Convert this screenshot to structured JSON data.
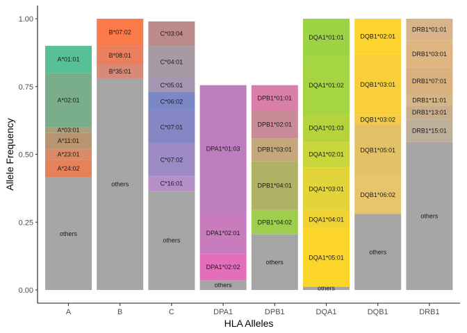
{
  "chart_data": {
    "type": "bar",
    "stacked": true,
    "title": "",
    "xlabel": "HLA Alleles",
    "ylabel": "Allele Frequency",
    "ylim": [
      0,
      1.0
    ],
    "yticks": [
      "0.00",
      "0.25",
      "0.50",
      "0.75",
      "1.00"
    ],
    "categories": [
      "A",
      "B",
      "C",
      "DPA1",
      "DPB1",
      "DQA1",
      "DQB1",
      "DRB1"
    ],
    "grid": false,
    "legend": "none",
    "stacks": [
      {
        "category": "A",
        "segments": [
          {
            "label": "others",
            "value": 0.415,
            "color": "#a6a6a6"
          },
          {
            "label": "A*24:02",
            "value": 0.065,
            "color": "#e5825a"
          },
          {
            "label": "A*23:01",
            "value": 0.04,
            "color": "#db8a66"
          },
          {
            "label": "A*11:01",
            "value": 0.06,
            "color": "#b99470"
          },
          {
            "label": "A*03:01",
            "value": 0.02,
            "color": "#a8a07a"
          },
          {
            "label": "A*02:01",
            "value": 0.2,
            "color": "#7aae8a"
          },
          {
            "label": "A*01:01",
            "value": 0.1,
            "color": "#58c098"
          }
        ]
      },
      {
        "category": "B",
        "segments": [
          {
            "label": "others",
            "value": 0.78,
            "color": "#a6a6a6"
          },
          {
            "label": "B*35:01",
            "value": 0.05,
            "color": "#d88a78"
          },
          {
            "label": "B*08:01",
            "value": 0.07,
            "color": "#ea7f5d"
          },
          {
            "label": "B*07:02",
            "value": 0.1,
            "color": "#fa7a4a"
          }
        ]
      },
      {
        "category": "C",
        "segments": [
          {
            "label": "others",
            "value": 0.365,
            "color": "#a6a6a6"
          },
          {
            "label": "C*16:01",
            "value": 0.055,
            "color": "#b68fc8"
          },
          {
            "label": "C*07:02",
            "value": 0.12,
            "color": "#9b8ac4"
          },
          {
            "label": "C*07:01",
            "value": 0.12,
            "color": "#8786c5"
          },
          {
            "label": "C*06:02",
            "value": 0.07,
            "color": "#7a89c6"
          },
          {
            "label": "C*05:01",
            "value": 0.05,
            "color": "#a596b4"
          },
          {
            "label": "C*04:01",
            "value": 0.12,
            "color": "#a89aa4"
          },
          {
            "label": "C*03:04",
            "value": 0.09,
            "color": "#bc8a88"
          }
        ]
      },
      {
        "category": "DPA1",
        "segments": [
          {
            "label": "others",
            "value": 0.035,
            "color": "#a6a6a6"
          },
          {
            "label": "DPA1*02:02",
            "value": 0.1,
            "color": "#e36fba"
          },
          {
            "label": "DPA1*02:01",
            "value": 0.15,
            "color": "#c97cbd"
          },
          {
            "label": "DPA1*01:03",
            "value": 0.47,
            "color": "#bd7ebf"
          }
        ]
      },
      {
        "category": "DPB1",
        "segments": [
          {
            "label": "others",
            "value": 0.205,
            "color": "#a6a6a6"
          },
          {
            "label": "DPB1*04:02",
            "value": 0.09,
            "color": "#9fce4f"
          },
          {
            "label": "DPB1*04:01",
            "value": 0.18,
            "color": "#afb265"
          },
          {
            "label": "DPB1*03:01",
            "value": 0.085,
            "color": "#c4a87c"
          },
          {
            "label": "DPB1*02:01",
            "value": 0.1,
            "color": "#c98b98"
          },
          {
            "label": "DPB1*01:01",
            "value": 0.095,
            "color": "#d97ea8"
          }
        ]
      },
      {
        "category": "DQA1",
        "segments": [
          {
            "label": "others",
            "value": 0.012,
            "color": "#a6a6a6"
          },
          {
            "label": "DQA1*05:01",
            "value": 0.215,
            "color": "#fbd52a"
          },
          {
            "label": "DQA1*04:01",
            "value": 0.065,
            "color": "#f1d235"
          },
          {
            "label": "DQA1*03:01",
            "value": 0.16,
            "color": "#e3d43a"
          },
          {
            "label": "DQA1*02:01",
            "value": 0.095,
            "color": "#c8d63b"
          },
          {
            "label": "DQA1*01:03",
            "value": 0.1,
            "color": "#b5d33e"
          },
          {
            "label": "DQA1*01:02",
            "value": 0.215,
            "color": "#a6d543"
          },
          {
            "label": "DQA1*01:01",
            "value": 0.138,
            "color": "#9cd445"
          }
        ]
      },
      {
        "category": "DQB1",
        "segments": [
          {
            "label": "others",
            "value": 0.28,
            "color": "#a6a6a6"
          },
          {
            "label": "DQB1*06:02",
            "value": 0.14,
            "color": "#e7c56f"
          },
          {
            "label": "DQB1*05:01",
            "value": 0.19,
            "color": "#e3c267"
          },
          {
            "label": "DQB1*03:02",
            "value": 0.035,
            "color": "#f1cb49"
          },
          {
            "label": "DQB1*03:01",
            "value": 0.225,
            "color": "#f8cf3a"
          },
          {
            "label": "DQB1*02:01",
            "value": 0.13,
            "color": "#fdd330"
          }
        ]
      },
      {
        "category": "DRB1",
        "segments": [
          {
            "label": "others",
            "value": 0.545,
            "color": "#a6a6a6"
          },
          {
            "label": "DRB1*15:01",
            "value": 0.085,
            "color": "#bdb09a"
          },
          {
            "label": "DRB1*13:01",
            "value": 0.05,
            "color": "#c9ae8c"
          },
          {
            "label": "DRB1*11:01",
            "value": 0.04,
            "color": "#d6b588"
          },
          {
            "label": "DRB1*07:01",
            "value": 0.1,
            "color": "#d8b17e"
          },
          {
            "label": "DRB1*03:01",
            "value": 0.1,
            "color": "#dfb682"
          },
          {
            "label": "DRB1*01:01",
            "value": 0.08,
            "color": "#d9b48a"
          }
        ]
      }
    ]
  }
}
